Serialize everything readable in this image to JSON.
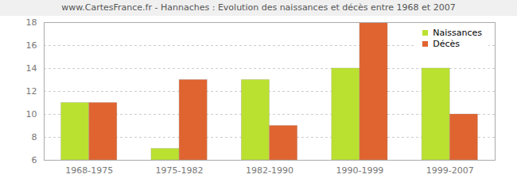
{
  "chart_data": {
    "type": "bar",
    "title": "www.CartesFrance.fr - Hannaches : Evolution des naissances et décès entre 1968 et 2007",
    "categories": [
      "1968-1975",
      "1975-1982",
      "1982-1990",
      "1990-1999",
      "1999-2007"
    ],
    "series": [
      {
        "name": "Naissances",
        "color": "#bbe130",
        "values": [
          11,
          7,
          13,
          14,
          14
        ]
      },
      {
        "name": "Décès",
        "color": "#e06430",
        "values": [
          11,
          13,
          9,
          18,
          10
        ]
      }
    ],
    "ylim": [
      6,
      18
    ],
    "yticks": [
      6,
      8,
      10,
      12,
      14,
      16,
      18
    ],
    "grid": true,
    "legend": "top-right"
  }
}
